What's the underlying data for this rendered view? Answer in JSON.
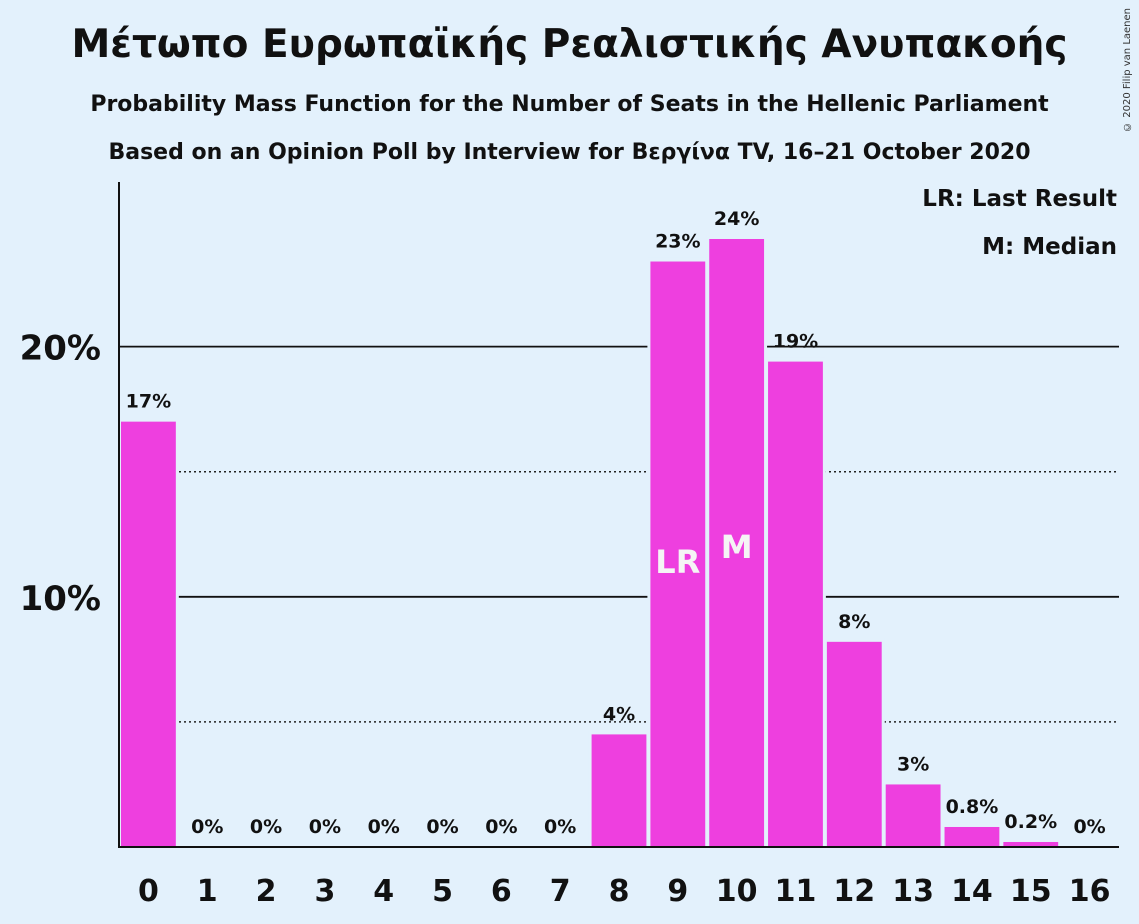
{
  "chart_data": {
    "type": "bar",
    "title": "Μέτωπο Ευρωπαϊκής Ρεαλιστικής Ανυπακοής",
    "subtitle": "Probability Mass Function for the Number of Seats in the Hellenic Parliament",
    "subtitle2": "Based on an Opinion Poll by Interview for Βεργίνα TV, 16–21 October 2020",
    "categories": [
      "0",
      "1",
      "2",
      "3",
      "4",
      "5",
      "6",
      "7",
      "8",
      "9",
      "10",
      "11",
      "12",
      "13",
      "14",
      "15",
      "16"
    ],
    "values": [
      17,
      0,
      0,
      0,
      0,
      0,
      0,
      0,
      4.5,
      23.4,
      24.3,
      19.4,
      8.2,
      2.5,
      0.8,
      0.2,
      0
    ],
    "data_labels": [
      "17%",
      "0%",
      "0%",
      "0%",
      "0%",
      "0%",
      "0%",
      "0%",
      "4%",
      "23%",
      "24%",
      "19%",
      "8%",
      "3%",
      "0.8%",
      "0.2%",
      "0%"
    ],
    "bar_markers": {
      "9": "LR",
      "10": "M"
    },
    "yticks": [
      {
        "value": 10,
        "label": "10%"
      },
      {
        "value": 20,
        "label": "20%"
      }
    ],
    "minor_gridlines": [
      5,
      15
    ],
    "ylim": [
      0,
      26.5
    ],
    "bar_color": "#ee3fdf",
    "background": "#e3f1fc",
    "legend": [
      "LR: Last Result",
      "M: Median"
    ],
    "legend_position": "top-right"
  },
  "copyright": "© 2020 Filip van Laenen"
}
